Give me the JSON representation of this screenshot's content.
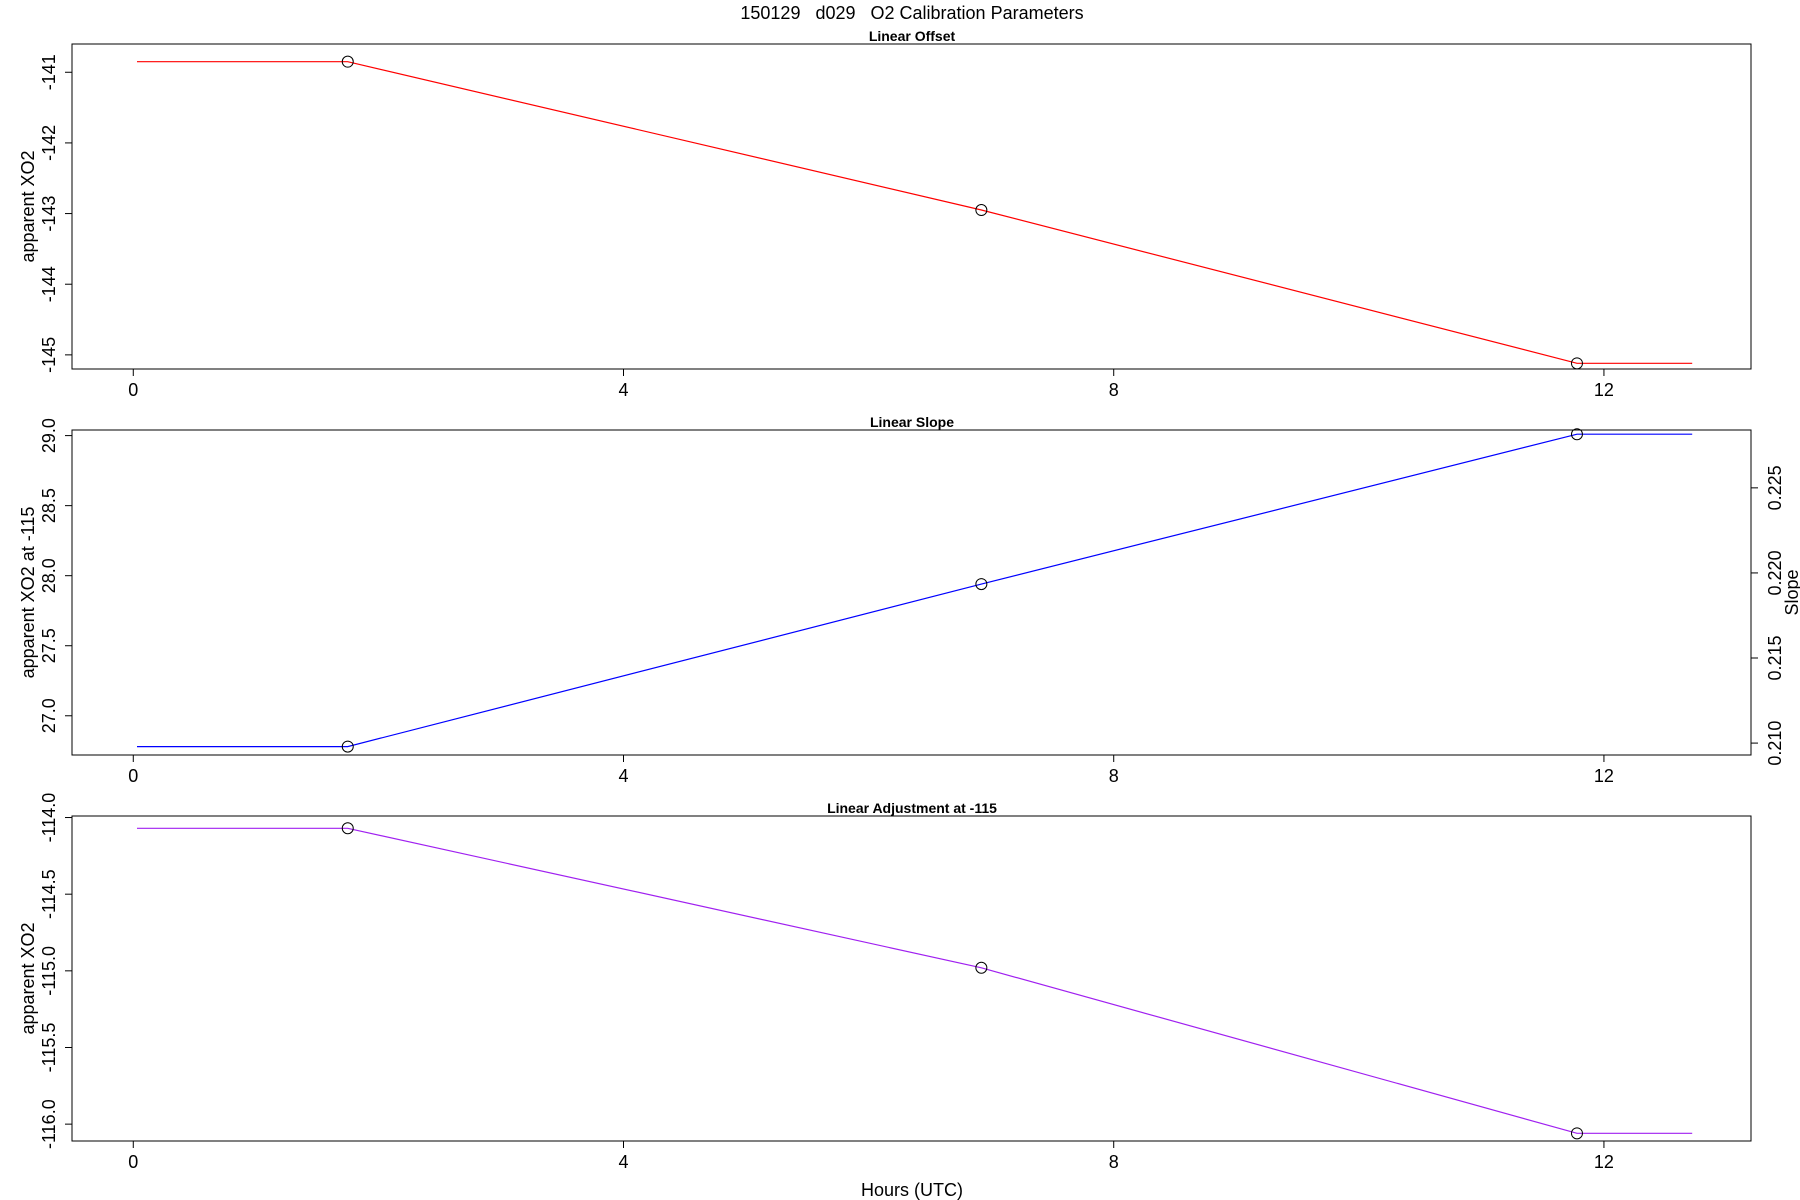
{
  "figure": {
    "title": "150129   d029   O2 Calibration Parameters",
    "xlabel": "Hours (UTC)"
  },
  "chart_data": [
    {
      "type": "line",
      "title": "Linear Offset",
      "xlabel": "",
      "ylabel": "apparent XO2",
      "xlim": [
        -0.5,
        13.2
      ],
      "ylim": [
        -145.2,
        -140.6
      ],
      "xticks": [
        0,
        4,
        8,
        12
      ],
      "yticks": [
        -141,
        -142,
        -143,
        -144,
        -145
      ],
      "color": "#ff0000",
      "line": {
        "x": [
          0.03,
          1.75,
          6.92,
          11.78,
          12.72
        ],
        "y": [
          -140.85,
          -140.85,
          -142.95,
          -145.12,
          -145.12
        ]
      },
      "points": {
        "x": [
          1.75,
          6.92,
          11.78
        ],
        "y": [
          -140.85,
          -142.95,
          -145.12
        ]
      },
      "grid": false,
      "legend": "none"
    },
    {
      "type": "line",
      "title": "Linear Slope",
      "xlabel": "",
      "ylabel": "apparent XO2 at -115",
      "xlim": [
        -0.5,
        13.2
      ],
      "ylim": [
        26.72,
        29.04
      ],
      "xticks": [
        0,
        4,
        8,
        12
      ],
      "yticks": [
        27.0,
        27.5,
        28.0,
        28.5,
        29.0
      ],
      "ytick_labels": [
        "27.0",
        "27.5",
        "28.0",
        "28.5",
        "29.0"
      ],
      "y2label": "Slope",
      "y2ticks": [
        0.21,
        0.215,
        0.22,
        0.225
      ],
      "y2tick_labels": [
        "0.210",
        "0.215",
        "0.220",
        "0.225"
      ],
      "y2lim": [
        0.2093,
        0.2284
      ],
      "color": "#0000ff",
      "line": {
        "x": [
          0.03,
          1.75,
          6.92,
          11.78,
          12.72
        ],
        "y": [
          26.78,
          26.78,
          27.94,
          29.01,
          29.01
        ]
      },
      "points": {
        "x": [
          1.75,
          6.92,
          11.78
        ],
        "y": [
          26.78,
          27.94,
          29.01
        ]
      },
      "grid": false,
      "legend": "none"
    },
    {
      "type": "line",
      "title": "Linear Adjustment at -115",
      "xlabel": "Hours (UTC)",
      "ylabel": "apparent XO2",
      "xlim": [
        -0.5,
        13.2
      ],
      "ylim": [
        -116.11,
        -113.99
      ],
      "xticks": [
        0,
        4,
        8,
        12
      ],
      "yticks": [
        -114.0,
        -114.5,
        -115.0,
        -115.5,
        -116.0
      ],
      "ytick_labels": [
        "-114.0",
        "-114.5",
        "-115.0",
        "-115.5",
        "-116.0"
      ],
      "color": "#a020f0",
      "line": {
        "x": [
          0.03,
          1.75,
          6.92,
          11.78,
          12.72
        ],
        "y": [
          -114.07,
          -114.07,
          -114.98,
          -116.06,
          -116.06
        ]
      },
      "points": {
        "x": [
          1.75,
          6.92,
          11.78
        ],
        "y": [
          -114.07,
          -114.98,
          -116.06
        ]
      },
      "grid": false,
      "legend": "none"
    }
  ]
}
